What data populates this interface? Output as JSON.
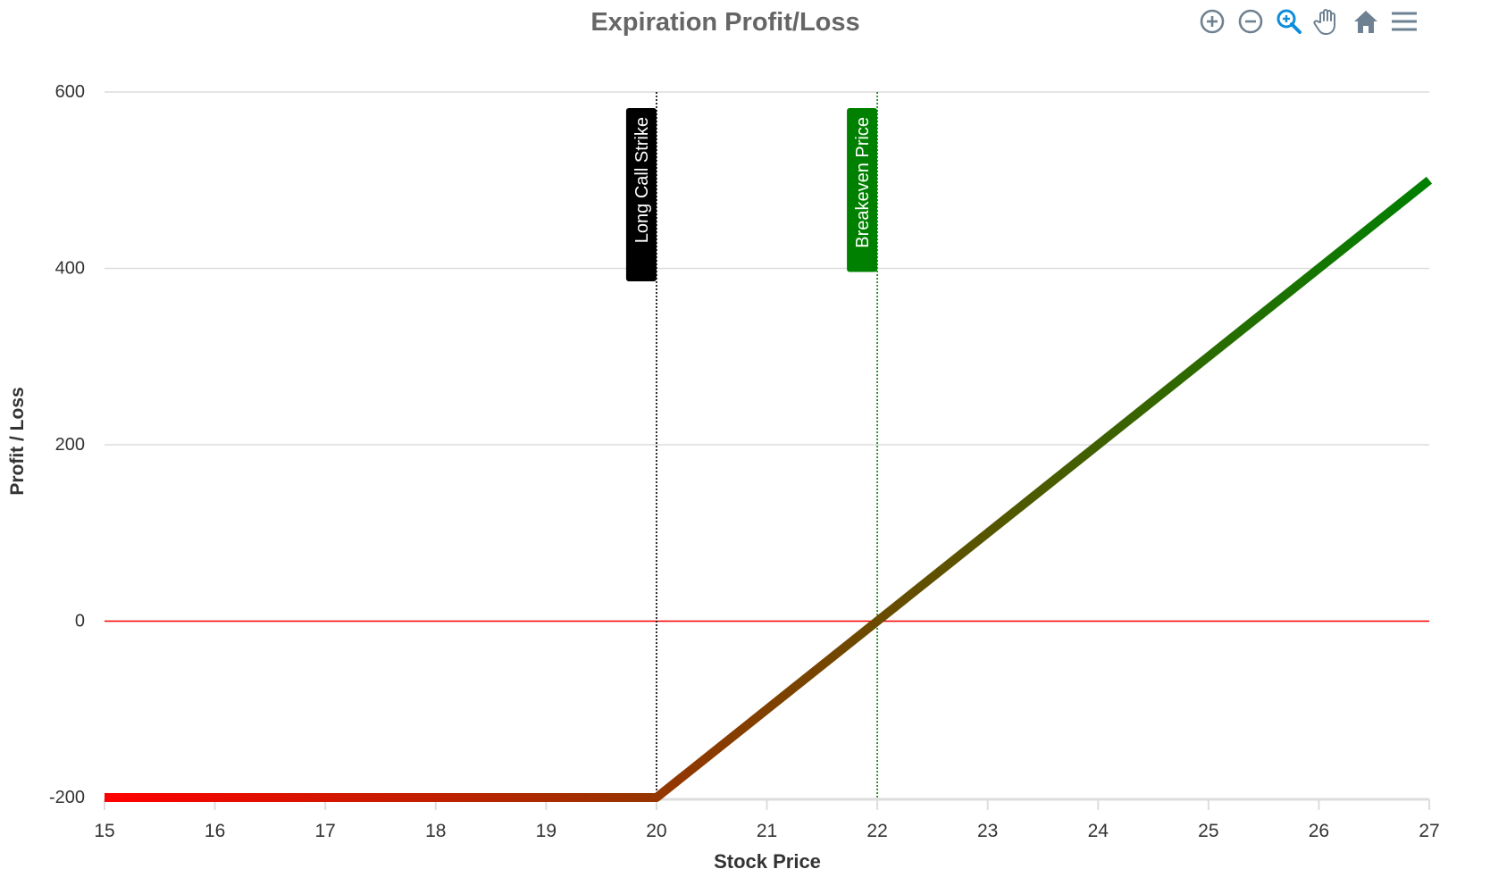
{
  "toolbar": {
    "icons": [
      "zoom-in-icon",
      "zoom-out-icon",
      "zoom-selection-icon",
      "pan-hand-icon",
      "home-reset-icon",
      "menu-icon"
    ],
    "icon_color": "#6e8192",
    "active_icon_color": "#0d8ddb"
  },
  "chart_data": {
    "type": "line",
    "title": "Expiration Profit/Loss",
    "xlabel": "Stock Price",
    "ylabel": "Profit / Loss",
    "xlim": [
      15,
      27
    ],
    "ylim": [
      -200,
      600
    ],
    "x_ticks": [
      "15",
      "16",
      "17",
      "18",
      "19",
      "20",
      "21",
      "22",
      "23",
      "24",
      "25",
      "26",
      "27"
    ],
    "y_ticks": [
      "-200",
      "0",
      "200",
      "400",
      "600"
    ],
    "grid": true,
    "series": [
      {
        "x": [
          15,
          16,
          17,
          18,
          19,
          20,
          21,
          22,
          23,
          24,
          25,
          26,
          27
        ],
        "y": [
          -200,
          -200,
          -200,
          -200,
          -200,
          -200,
          -100,
          0,
          100,
          200,
          300,
          400,
          500
        ],
        "gradient": [
          "#ff0000",
          "#008000"
        ]
      }
    ],
    "reference_lines": [
      {
        "axis": "y",
        "value": 0,
        "color": "#ff0000"
      },
      {
        "axis": "x",
        "value": 20,
        "label": "Long Call Strike",
        "color": "#000000",
        "label_bg": "#000000",
        "style": "dotted"
      },
      {
        "axis": "x",
        "value": 22,
        "label": "Breakeven Price",
        "color": "#008000",
        "label_bg": "#008000",
        "style": "dotted"
      }
    ]
  }
}
